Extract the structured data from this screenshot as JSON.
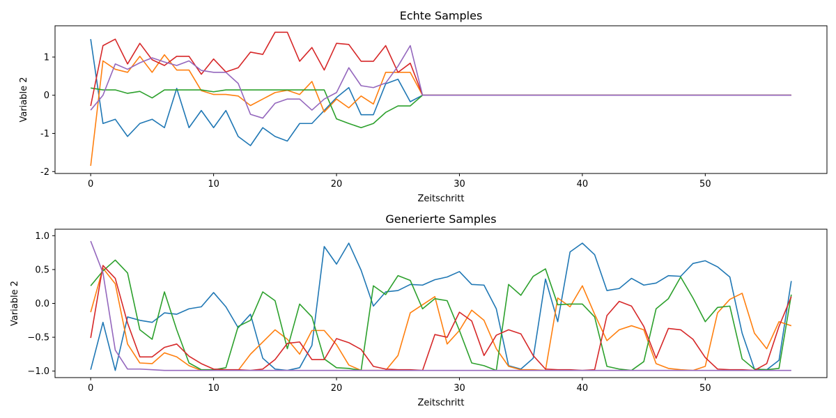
{
  "chart_data": [
    {
      "type": "line",
      "title": "Echte Samples",
      "xlabel": "Zeitschritt",
      "ylabel": "Variable 2",
      "xlim": [
        -2.9,
        59.9
      ],
      "ylim": [
        -2.05,
        1.82
      ],
      "xticks": [
        0,
        10,
        20,
        30,
        40,
        50
      ],
      "yticks": [
        -2,
        -1,
        0,
        1
      ],
      "series": [
        {
          "color": "#1f77b4",
          "values": [
            1.47,
            -0.74,
            -0.63,
            -1.08,
            -0.74,
            -0.63,
            -0.85,
            0.18,
            -0.85,
            -0.4,
            -0.85,
            -0.4,
            -1.08,
            -1.32,
            -0.85,
            -1.08,
            -1.2,
            -0.74,
            -0.74,
            -0.4,
            -0.06,
            0.2,
            -0.51,
            -0.51,
            0.3,
            0.42,
            -0.17,
            0.0,
            0,
            0,
            0,
            0,
            0,
            0,
            0,
            0,
            0,
            0,
            0,
            0,
            0,
            0,
            0,
            0,
            0,
            0,
            0,
            0,
            0,
            0,
            0,
            0,
            0,
            0,
            0,
            0,
            0,
            0
          ]
        },
        {
          "color": "#ff7f0e",
          "values": [
            -1.85,
            0.9,
            0.68,
            0.6,
            1.02,
            0.6,
            1.06,
            0.66,
            0.66,
            0.12,
            0.02,
            0.02,
            -0.02,
            -0.27,
            -0.1,
            0.07,
            0.13,
            0.02,
            0.36,
            -0.44,
            -0.1,
            -0.33,
            -0.02,
            -0.23,
            0.6,
            0.6,
            0.6,
            0.0,
            0,
            0,
            0,
            0,
            0,
            0,
            0,
            0,
            0,
            0,
            0,
            0,
            0,
            0,
            0,
            0,
            0,
            0,
            0,
            0,
            0,
            0,
            0,
            0,
            0,
            0,
            0,
            0,
            0,
            0
          ]
        },
        {
          "color": "#2ca02c",
          "values": [
            0.19,
            0.14,
            0.14,
            0.05,
            0.1,
            -0.07,
            0.14,
            0.14,
            0.14,
            0.14,
            0.09,
            0.14,
            0.14,
            0.14,
            0.14,
            0.14,
            0.14,
            0.14,
            0.14,
            0.14,
            -0.62,
            -0.74,
            -0.85,
            -0.74,
            -0.45,
            -0.28,
            -0.28,
            0.0,
            0,
            0,
            0,
            0,
            0,
            0,
            0,
            0,
            0,
            0,
            0,
            0,
            0,
            0,
            0,
            0,
            0,
            0,
            0,
            0,
            0,
            0,
            0,
            0,
            0,
            0,
            0,
            0,
            0,
            0
          ]
        },
        {
          "color": "#d62728",
          "values": [
            -0.28,
            1.3,
            1.47,
            0.82,
            1.36,
            0.93,
            0.78,
            1.02,
            1.02,
            0.55,
            0.95,
            0.61,
            0.72,
            1.13,
            1.07,
            1.65,
            1.65,
            0.89,
            1.25,
            0.66,
            1.36,
            1.33,
            0.89,
            0.89,
            1.3,
            0.6,
            0.84,
            0.0,
            0,
            0,
            0,
            0,
            0,
            0,
            0,
            0,
            0,
            0,
            0,
            0,
            0,
            0,
            0,
            0,
            0,
            0,
            0,
            0,
            0,
            0,
            0,
            0,
            0,
            0,
            0,
            0,
            0,
            0
          ]
        },
        {
          "color": "#9467bd",
          "values": [
            -0.39,
            0.0,
            0.82,
            0.68,
            0.85,
            0.98,
            0.87,
            0.78,
            0.9,
            0.65,
            0.6,
            0.6,
            0.31,
            -0.5,
            -0.6,
            -0.21,
            -0.1,
            -0.1,
            -0.39,
            -0.1,
            0.07,
            0.72,
            0.25,
            0.2,
            0.32,
            0.76,
            1.3,
            0.0,
            0,
            0,
            0,
            0,
            0,
            0,
            0,
            0,
            0,
            0,
            0,
            0,
            0,
            0,
            0,
            0,
            0,
            0,
            0,
            0,
            0,
            0,
            0,
            0,
            0,
            0,
            0,
            0,
            0,
            0
          ]
        }
      ]
    },
    {
      "type": "line",
      "title": "Generierte Samples",
      "xlabel": "Zeitschritt",
      "ylabel": "Variable 2",
      "xlim": [
        -2.9,
        59.9
      ],
      "ylim": [
        -1.096,
        1.096
      ],
      "xticks": [
        0,
        10,
        20,
        30,
        40,
        50
      ],
      "yticks": [
        -1.0,
        -0.5,
        0.0,
        0.5,
        1.0
      ],
      "yticklabels": [
        "−1.0",
        "−0.5",
        "0.0",
        "0.5",
        "1.0"
      ],
      "series": [
        {
          "color": "#1f77b4",
          "values": [
            -0.98,
            -0.28,
            -0.99,
            -0.2,
            -0.25,
            -0.28,
            -0.14,
            -0.16,
            -0.08,
            -0.05,
            0.16,
            -0.05,
            -0.36,
            -0.16,
            -0.81,
            -0.97,
            -0.99,
            -0.95,
            -0.62,
            0.84,
            0.58,
            0.89,
            0.49,
            -0.04,
            0.17,
            0.19,
            0.28,
            0.27,
            0.35,
            0.39,
            0.47,
            0.28,
            0.27,
            -0.08,
            -0.92,
            -0.97,
            -0.81,
            0.36,
            -0.27,
            0.76,
            0.89,
            0.72,
            0.19,
            0.22,
            0.37,
            0.27,
            0.3,
            0.41,
            0.4,
            0.59,
            0.63,
            0.54,
            0.39,
            -0.44,
            -0.97,
            -0.98,
            -0.84,
            0.33
          ]
        },
        {
          "color": "#ff7f0e",
          "values": [
            -0.13,
            0.52,
            0.29,
            -0.6,
            -0.88,
            -0.89,
            -0.73,
            -0.79,
            -0.92,
            -0.99,
            -0.99,
            -0.99,
            -0.99,
            -0.75,
            -0.57,
            -0.39,
            -0.53,
            -0.75,
            -0.4,
            -0.4,
            -0.61,
            -0.91,
            -0.99,
            -0.99,
            -0.99,
            -0.77,
            -0.14,
            -0.02,
            0.1,
            -0.6,
            -0.4,
            -0.1,
            -0.25,
            -0.67,
            -0.93,
            -0.98,
            -0.98,
            -0.99,
            0.08,
            -0.05,
            0.26,
            -0.16,
            -0.55,
            -0.39,
            -0.33,
            -0.39,
            -0.89,
            -0.96,
            -0.98,
            -0.99,
            -0.93,
            -0.14,
            0.06,
            0.15,
            -0.44,
            -0.67,
            -0.27,
            -0.33
          ]
        },
        {
          "color": "#2ca02c",
          "values": [
            0.26,
            0.48,
            0.64,
            0.45,
            -0.39,
            -0.53,
            0.17,
            -0.39,
            -0.88,
            -0.98,
            -0.98,
            -0.95,
            -0.34,
            -0.25,
            0.17,
            0.04,
            -0.67,
            -0.01,
            -0.2,
            -0.82,
            -0.95,
            -0.96,
            -0.99,
            0.26,
            0.13,
            0.41,
            0.34,
            -0.08,
            0.07,
            0.04,
            -0.4,
            -0.88,
            -0.92,
            -0.99,
            0.28,
            0.12,
            0.4,
            0.51,
            -0.02,
            -0.01,
            -0.01,
            -0.2,
            -0.93,
            -0.97,
            -0.99,
            -0.86,
            -0.08,
            0.07,
            0.39,
            0.08,
            -0.27,
            -0.06,
            -0.04,
            -0.82,
            -0.97,
            -0.98,
            -0.96,
            0.13
          ]
        },
        {
          "color": "#d62728",
          "values": [
            -0.51,
            0.56,
            0.37,
            -0.29,
            -0.79,
            -0.79,
            -0.65,
            -0.6,
            -0.78,
            -0.89,
            -0.97,
            -0.98,
            -0.98,
            -0.99,
            -0.97,
            -0.83,
            -0.59,
            -0.57,
            -0.83,
            -0.83,
            -0.52,
            -0.58,
            -0.68,
            -0.93,
            -0.97,
            -0.98,
            -0.98,
            -0.99,
            -0.46,
            -0.5,
            -0.13,
            -0.26,
            -0.77,
            -0.47,
            -0.39,
            -0.45,
            -0.77,
            -0.97,
            -0.98,
            -0.98,
            -0.99,
            -0.98,
            -0.18,
            0.03,
            -0.04,
            -0.34,
            -0.81,
            -0.37,
            -0.39,
            -0.53,
            -0.8,
            -0.97,
            -0.98,
            -0.98,
            -0.99,
            -0.89,
            -0.34,
            0.1
          ]
        },
        {
          "color": "#9467bd",
          "values": [
            0.92,
            0.45,
            -0.69,
            -0.97,
            -0.97,
            -0.98,
            -0.99,
            -0.99,
            -0.99,
            -0.99,
            -0.99,
            -0.99,
            -0.99,
            -0.99,
            -0.99,
            -0.99,
            -0.99,
            -0.99,
            -0.99,
            -0.99,
            -0.99,
            -0.99,
            -0.99,
            -0.99,
            -0.99,
            -0.99,
            -0.99,
            -0.99,
            -0.99,
            -0.99,
            -0.99,
            -0.99,
            -0.99,
            -0.99,
            -0.99,
            -0.99,
            -0.99,
            -0.99,
            -0.99,
            -0.99,
            -0.99,
            -0.99,
            -0.99,
            -0.99,
            -0.99,
            -0.99,
            -0.99,
            -0.99,
            -0.99,
            -0.99,
            -0.99,
            -0.99,
            -0.99,
            -0.99,
            -0.99,
            -0.99,
            -0.99,
            -0.99
          ]
        }
      ]
    }
  ]
}
